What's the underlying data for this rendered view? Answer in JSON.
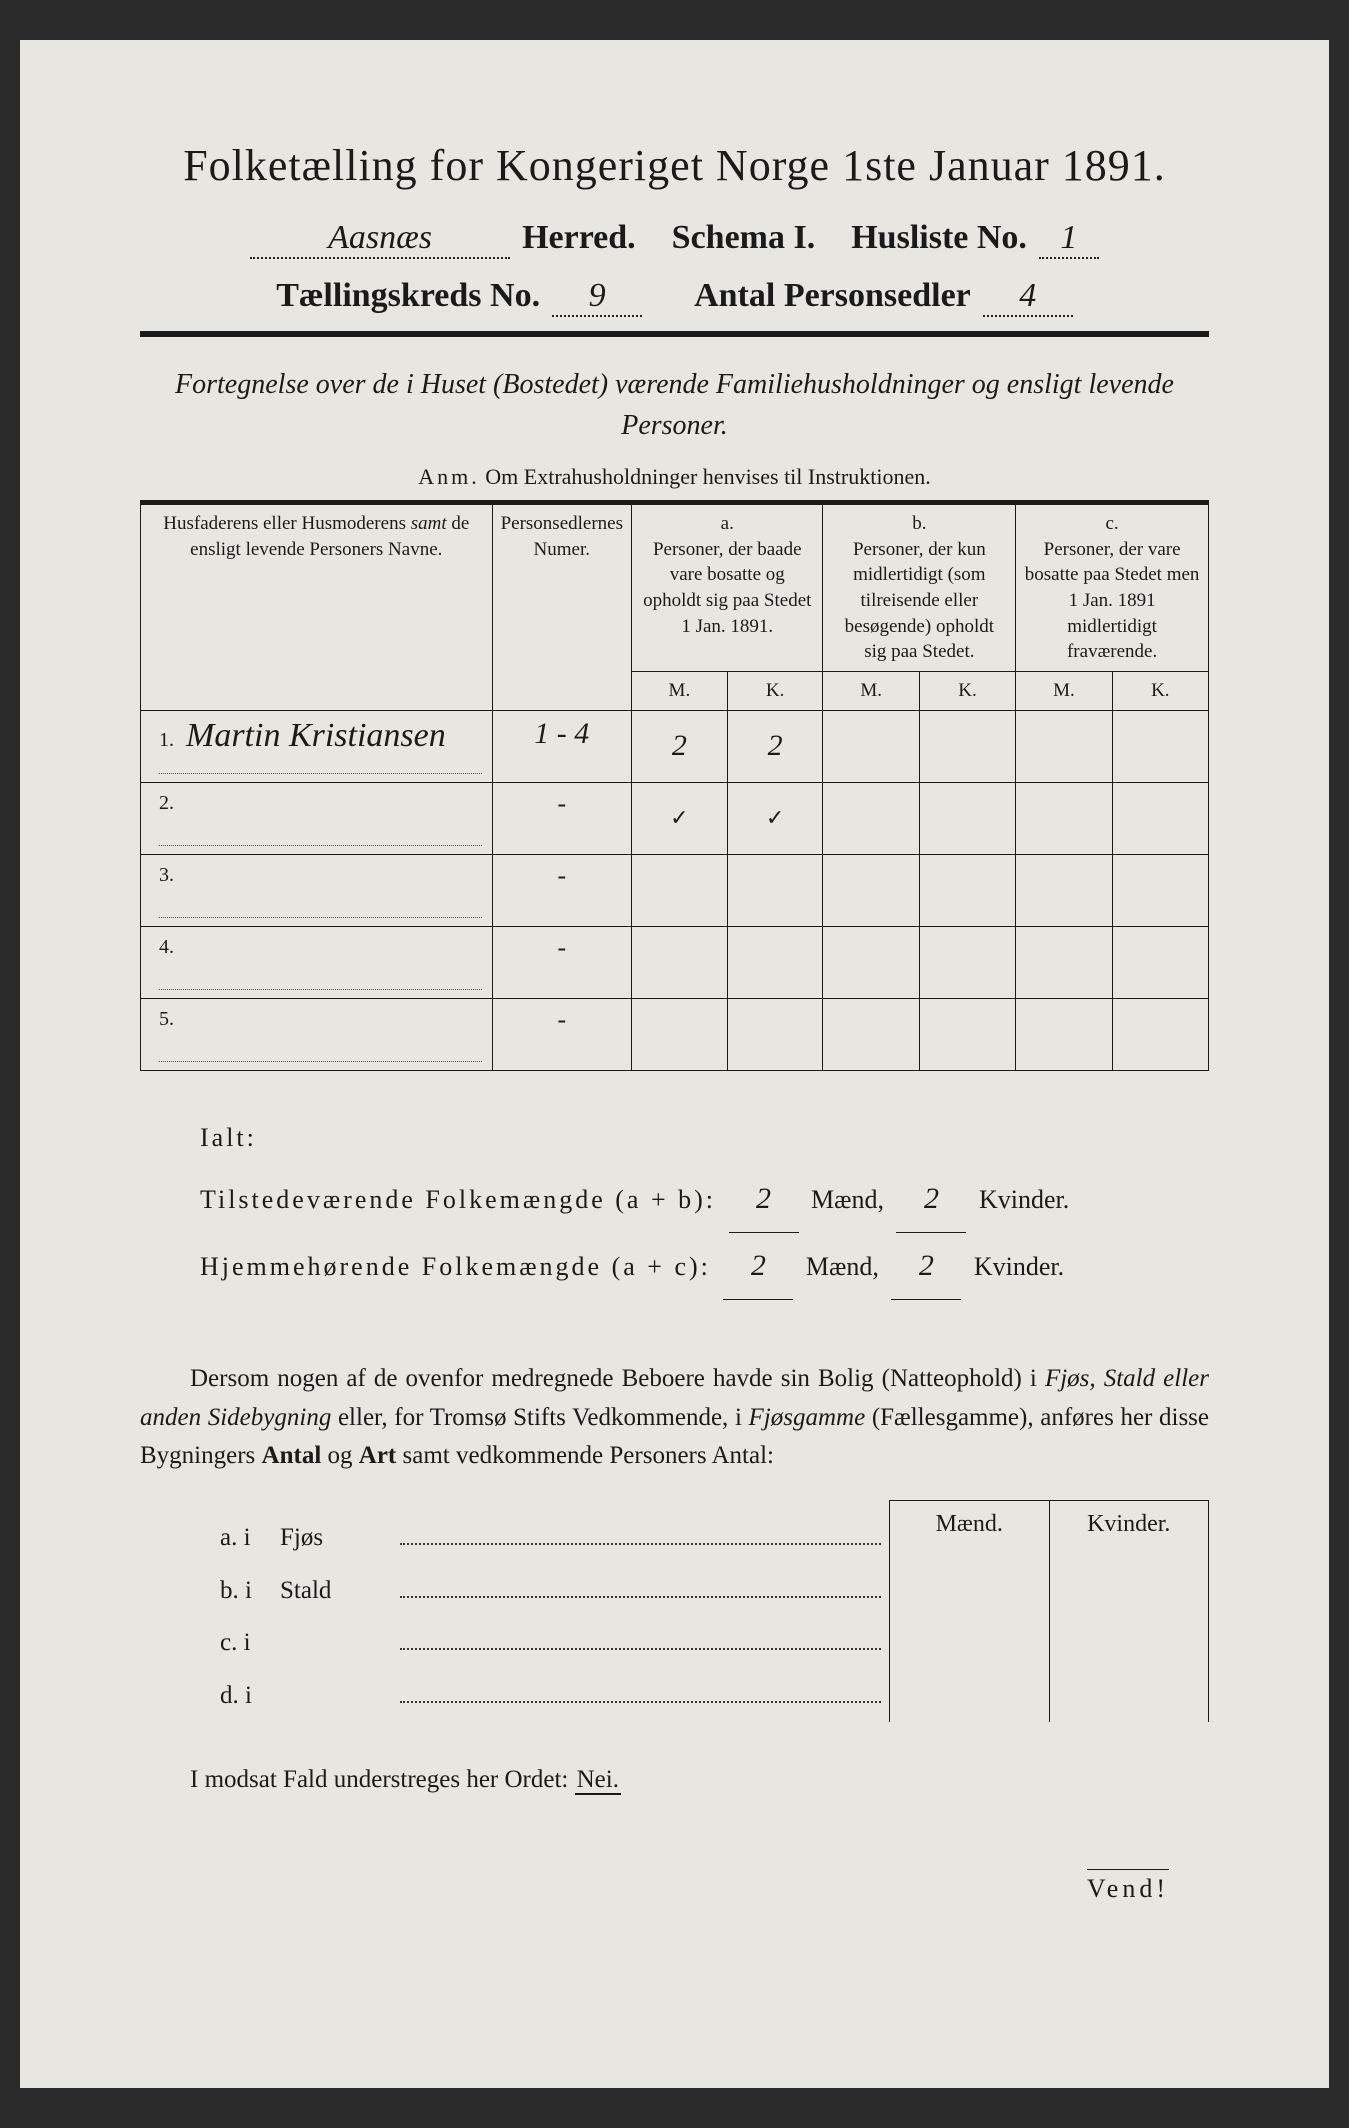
{
  "title": "Folketælling for Kongeriget Norge 1ste Januar 1891.",
  "header": {
    "herred_value": "Aasnæs",
    "herred_label": "Herred.",
    "schema_label": "Schema I.",
    "husliste_label": "Husliste No.",
    "husliste_value": "1",
    "kreds_label": "Tællingskreds No.",
    "kreds_value": "9",
    "sedler_label": "Antal Personsedler",
    "sedler_value": "4"
  },
  "subtitle": "Fortegnelse over de i Huset (Bostedet) værende Familiehusholdninger og ensligt levende Personer.",
  "anm_label": "Anm.",
  "anm_text": "Om Extrahusholdninger henvises til Instruktionen.",
  "table": {
    "col_name": "Husfaderens eller Husmoderens samt de ensligt levende Personers Navne.",
    "col_num": "Personsedlernes Numer.",
    "col_a_head": "a.",
    "col_a": "Personer, der baade vare bosatte og opholdt sig paa Stedet 1 Jan. 1891.",
    "col_b_head": "b.",
    "col_b": "Personer, der kun midlertidigt (som tilreisende eller besøgende) opholdt sig paa Stedet.",
    "col_c_head": "c.",
    "col_c": "Personer, der vare bosatte paa Stedet men 1 Jan. 1891 midlertidigt fraværende.",
    "m": "M.",
    "k": "K.",
    "rows": [
      {
        "n": "1.",
        "name": "Martin Kristiansen",
        "num": "1 - 4",
        "am": "2",
        "ak": "2",
        "bm": "",
        "bk": "",
        "cm": "",
        "ck": ""
      },
      {
        "n": "2.",
        "name": "",
        "num": "-",
        "am": "✓",
        "ak": "✓",
        "bm": "",
        "bk": "",
        "cm": "",
        "ck": ""
      },
      {
        "n": "3.",
        "name": "",
        "num": "-",
        "am": "",
        "ak": "",
        "bm": "",
        "bk": "",
        "cm": "",
        "ck": ""
      },
      {
        "n": "4.",
        "name": "",
        "num": "-",
        "am": "",
        "ak": "",
        "bm": "",
        "bk": "",
        "cm": "",
        "ck": ""
      },
      {
        "n": "5.",
        "name": "",
        "num": "-",
        "am": "",
        "ak": "",
        "bm": "",
        "bk": "",
        "cm": "",
        "ck": ""
      }
    ]
  },
  "totals": {
    "ialt": "Ialt:",
    "line1_label": "Tilstedeværende Folkemængde (a + b):",
    "line2_label": "Hjemmehørende Folkemængde (a + c):",
    "maend": "Mænd,",
    "kvinder": "Kvinder.",
    "l1_m": "2",
    "l1_k": "2",
    "l2_m": "2",
    "l2_k": "2"
  },
  "para": "Dersom nogen af de ovenfor medregnede Beboere havde sin Bolig (Natteophold) i Fjøs, Stald eller anden Sidebygning eller, for Tromsø Stifts Vedkommende, i Fjøsgamme (Fællesgamme), anføres her disse Bygningers Antal og Art samt vedkommende Personers Antal:",
  "side": {
    "maend": "Mænd.",
    "kvinder": "Kvinder.",
    "rows": [
      {
        "tag": "a. i",
        "word": "Fjøs"
      },
      {
        "tag": "b. i",
        "word": "Stald"
      },
      {
        "tag": "c. i",
        "word": ""
      },
      {
        "tag": "d. i",
        "word": ""
      }
    ]
  },
  "final_text": "I modsat Fald understreges her Ordet:",
  "final_nei": "Nei.",
  "vend": "Vend!"
}
